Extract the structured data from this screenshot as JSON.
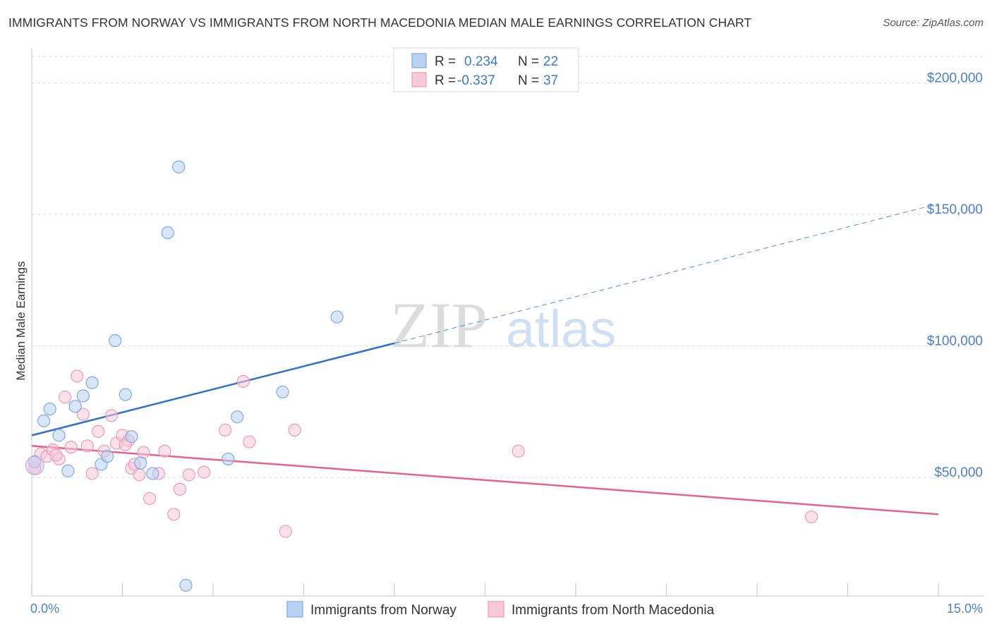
{
  "title": "IMMIGRANTS FROM NORWAY VS IMMIGRANTS FROM NORTH MACEDONIA MEDIAN MALE EARNINGS CORRELATION CHART",
  "source": "Source: ZipAtlas.com",
  "watermark": {
    "zip": "ZIP",
    "atlas": "atlas"
  },
  "legend_top": [
    {
      "r_label": "R =",
      "r_value": "0.234",
      "n_label": "N =",
      "n_value": "22"
    },
    {
      "r_label": "R =",
      "r_value": "-0.337",
      "n_label": "N =",
      "n_value": "37"
    }
  ],
  "chart_data": {
    "type": "scatter",
    "title": "IMMIGRANTS FROM NORWAY VS IMMIGRANTS FROM NORTH MACEDONIA MEDIAN MALE EARNINGS CORRELATION CHART",
    "xlabel": "",
    "ylabel": "Median Male Earnings",
    "xlim": [
      0,
      15
    ],
    "ylim": [
      5000,
      210000
    ],
    "x_tick_labels": [
      "0.0%",
      "15.0%"
    ],
    "y_ticks": [
      50000,
      100000,
      150000,
      200000
    ],
    "y_tick_labels": [
      "$50,000",
      "$100,000",
      "$150,000",
      "$200,000"
    ],
    "grid": true,
    "legend": "bottom",
    "series": [
      {
        "name": "Immigrants from Norway",
        "color": "#7ea9e6",
        "fill": "#b9d1f3",
        "line_color": "#2f6fcf",
        "r": 0.234,
        "n": 22,
        "trend": {
          "x0": 0.0,
          "y0": 66000,
          "x1_solid": 6.0,
          "y1_solid": 101000,
          "x1": 15.0,
          "y1": 154000
        },
        "points": [
          [
            0.05,
            56000
          ],
          [
            0.2,
            71500
          ],
          [
            0.3,
            76000
          ],
          [
            0.45,
            66000
          ],
          [
            0.6,
            52500
          ],
          [
            0.72,
            77000
          ],
          [
            0.85,
            81000
          ],
          [
            1.0,
            86000
          ],
          [
            1.15,
            55000
          ],
          [
            1.25,
            58000
          ],
          [
            1.38,
            102000
          ],
          [
            1.55,
            81500
          ],
          [
            1.65,
            65500
          ],
          [
            1.8,
            55500
          ],
          [
            2.0,
            51500
          ],
          [
            2.25,
            143000
          ],
          [
            2.43,
            168000
          ],
          [
            2.55,
            9000
          ],
          [
            3.25,
            57000
          ],
          [
            3.4,
            73000
          ],
          [
            4.15,
            82500
          ],
          [
            5.05,
            111000
          ]
        ]
      },
      {
        "name": "Immigrants from North Macedonia",
        "color": "#ee9ab6",
        "fill": "#f8c9d8",
        "line_color": "#e5628f",
        "r": -0.337,
        "n": 37,
        "trend": {
          "x0": 0.0,
          "y0": 62000,
          "x1": 15.0,
          "y1": 36000
        },
        "points": [
          [
            0.05,
            53500
          ],
          [
            0.15,
            59000
          ],
          [
            0.25,
            58000
          ],
          [
            0.35,
            60500
          ],
          [
            0.45,
            57000
          ],
          [
            0.55,
            80500
          ],
          [
            0.65,
            61500
          ],
          [
            0.75,
            88500
          ],
          [
            0.85,
            74000
          ],
          [
            0.92,
            62000
          ],
          [
            1.0,
            51500
          ],
          [
            1.1,
            67500
          ],
          [
            1.2,
            60000
          ],
          [
            1.32,
            73500
          ],
          [
            1.4,
            63000
          ],
          [
            1.5,
            66000
          ],
          [
            1.6,
            64000
          ],
          [
            1.65,
            53500
          ],
          [
            1.7,
            55000
          ],
          [
            1.78,
            51000
          ],
          [
            1.85,
            59500
          ],
          [
            1.95,
            42000
          ],
          [
            2.1,
            51500
          ],
          [
            2.2,
            60000
          ],
          [
            2.35,
            36000
          ],
          [
            2.45,
            45500
          ],
          [
            2.6,
            51000
          ],
          [
            2.85,
            52000
          ],
          [
            3.2,
            68000
          ],
          [
            3.5,
            86500
          ],
          [
            3.6,
            63500
          ],
          [
            4.2,
            29500
          ],
          [
            4.35,
            68000
          ],
          [
            8.05,
            60000
          ],
          [
            12.9,
            35000
          ],
          [
            0.4,
            58500
          ],
          [
            1.55,
            62500
          ]
        ]
      }
    ]
  }
}
